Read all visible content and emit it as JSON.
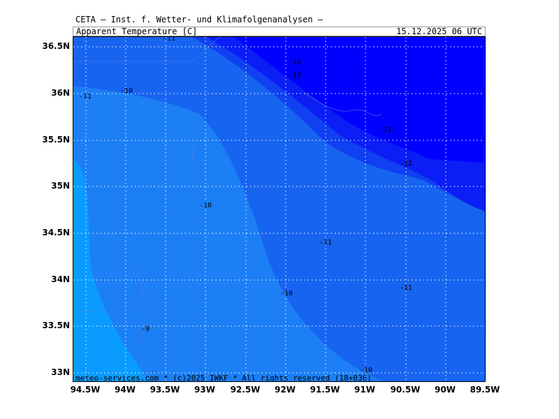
{
  "header": {
    "title": "CETA — Inst. f. Wetter- und Klimafolgenanalysen —",
    "parameter": "Apparent Temperature [C]",
    "datetime": "15.12.2025 06 UTC"
  },
  "footer": {
    "copyright": "meteo-services.com * (c)2025 IWKF * All rights reserved (18+036)"
  },
  "axes": {
    "lat_labels": [
      "36.5N",
      "36N",
      "35.5N",
      "35N",
      "34.5N",
      "34N",
      "33.5N",
      "33N"
    ],
    "lon_labels": [
      "94.5W",
      "94W",
      "93.5W",
      "93W",
      "92.5W",
      "92W",
      "91.5W",
      "91W",
      "90.5W",
      "90W",
      "89.5W"
    ]
  },
  "contour_labels": [
    "-11",
    "-14",
    "-13",
    "-11",
    "-10",
    "-13",
    "-12",
    "-10",
    "-11",
    "-10",
    "-11",
    "-9",
    "-10"
  ],
  "colors": {
    "band_-9": "#0a9bff",
    "band_-10": "#1c7ff5",
    "band_-11": "#1764f0",
    "band_-12": "#1040f0",
    "band_-13": "#0a1ef5",
    "band_-14": "#0000ff"
  }
}
